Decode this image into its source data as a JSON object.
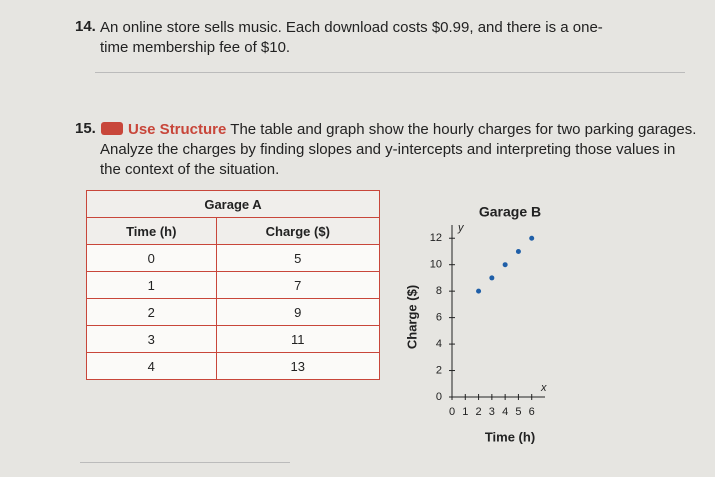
{
  "problem_14": {
    "number": "14.",
    "text": "An online store sells music. Each download costs $0.99, and there is a one-time membership fee of $10."
  },
  "problem_15": {
    "number": "15.",
    "label": "Use Structure",
    "text": "The table and graph show the hourly charges for two parking garages. Analyze the charges by finding slopes and y-intercepts and interpreting those values in the context of the situation."
  },
  "table": {
    "title": "Garage A",
    "columns": [
      "Time (h)",
      "Charge ($)"
    ],
    "rows": [
      [
        0,
        5
      ],
      [
        1,
        7
      ],
      [
        2,
        9
      ],
      [
        3,
        11
      ],
      [
        4,
        13
      ]
    ]
  },
  "chart_data": {
    "type": "scatter",
    "title": "Garage B",
    "x_label": "Time (h)",
    "y_label": "Charge ($)",
    "x_var": "x",
    "y_var": "y",
    "x": [
      2,
      3,
      4,
      5,
      6
    ],
    "values": [
      8,
      9,
      10,
      11,
      12
    ],
    "color": "#1f5fa8",
    "xlim": [
      0,
      7
    ],
    "ylim": [
      0,
      13
    ],
    "xticks": [
      0,
      1,
      2,
      3,
      4,
      5,
      6
    ],
    "yticks": [
      0,
      2,
      4,
      6,
      8,
      10,
      12
    ]
  }
}
